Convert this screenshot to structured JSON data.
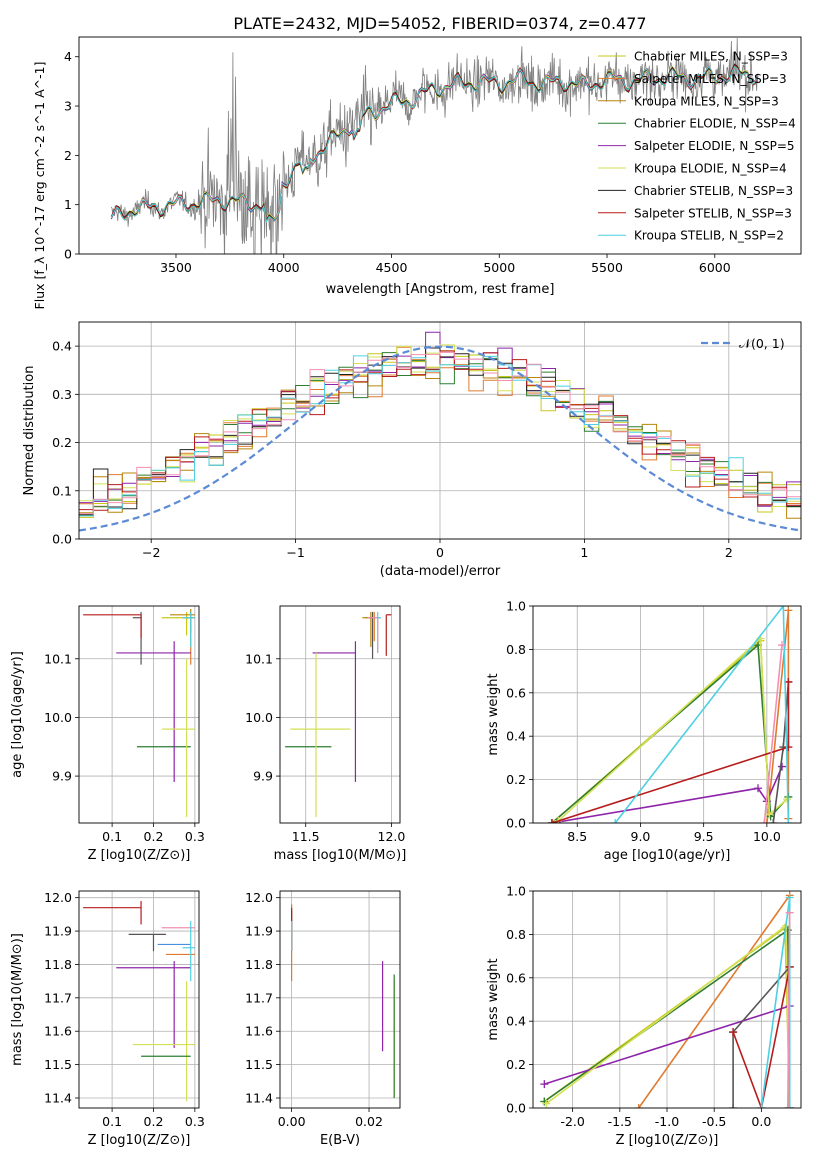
{
  "figure": {
    "suptitle": "PLATE=2432, MJD=54052, FIBERID=0374, z=0.477"
  },
  "series_colors": [
    "#c7c71a",
    "#e07a30",
    "#b8860b",
    "#2e7d32",
    "#8e24aa",
    "#d4e157",
    "#222222",
    "#b71c1c",
    "#4dd0e1"
  ],
  "chart_data": [
    {
      "id": "spectrum",
      "type": "line",
      "title": "PLATE=2432, MJD=54052, FIBERID=0374, z=0.477",
      "xlabel": "wavelength [Angstrom, rest frame]",
      "ylabel": "Flux [f_λ 10^-17 erg cm^-2 s^-1 A^-1]",
      "xlim": [
        3050,
        6400
      ],
      "ylim": [
        0,
        4.4
      ],
      "xticks": [
        3500,
        4000,
        4500,
        5000,
        5500,
        6000
      ],
      "yticks": [
        0,
        1,
        2,
        3,
        4
      ],
      "grid": false,
      "legend": "top-right",
      "data_color": "#808080",
      "models": [
        {
          "name": "Chabrier MILES, N_SSP=3",
          "color": "#c7c71a"
        },
        {
          "name": "Salpeter MILES, N_SSP=3",
          "color": "#e07a30"
        },
        {
          "name": "Kroupa MILES, N_SSP=3",
          "color": "#b8860b"
        },
        {
          "name": "Chabrier ELODIE, N_SSP=4",
          "color": "#2e7d32"
        },
        {
          "name": "Salpeter ELODIE, N_SSP=5",
          "color": "#8e24aa"
        },
        {
          "name": "Kroupa ELODIE, N_SSP=4",
          "color": "#d4e157"
        },
        {
          "name": "Chabrier STELIB, N_SSP=3",
          "color": "#222222"
        },
        {
          "name": "Salpeter STELIB, N_SSP=3",
          "color": "#b71c1c"
        },
        {
          "name": "Kroupa STELIB, N_SSP=2",
          "color": "#4dd0e1"
        }
      ],
      "continuum_knots": [
        [
          3200,
          0.72
        ],
        [
          3300,
          0.92
        ],
        [
          3400,
          0.95
        ],
        [
          3500,
          1.0
        ],
        [
          3600,
          1.05
        ],
        [
          3700,
          1.1
        ],
        [
          3800,
          1.05
        ],
        [
          3900,
          1.0
        ],
        [
          3950,
          1.15
        ],
        [
          4000,
          1.5
        ],
        [
          4100,
          1.9
        ],
        [
          4200,
          2.2
        ],
        [
          4300,
          2.6
        ],
        [
          4400,
          2.85
        ],
        [
          4500,
          3.05
        ],
        [
          4600,
          3.15
        ],
        [
          4700,
          3.35
        ],
        [
          4800,
          3.45
        ],
        [
          4900,
          3.5
        ],
        [
          5000,
          3.45
        ],
        [
          5100,
          3.55
        ],
        [
          5200,
          3.45
        ],
        [
          5300,
          3.5
        ],
        [
          5400,
          3.4
        ],
        [
          5500,
          3.55
        ],
        [
          5600,
          3.5
        ],
        [
          5700,
          3.55
        ],
        [
          5800,
          3.6
        ],
        [
          5900,
          3.55
        ],
        [
          6000,
          3.6
        ],
        [
          6100,
          3.65
        ],
        [
          6200,
          3.65
        ]
      ]
    },
    {
      "id": "residuals",
      "type": "histogram",
      "xlabel": "(data-model)/error",
      "ylabel": "Normed distribution",
      "xlim": [
        -2.5,
        2.5
      ],
      "ylim": [
        0,
        0.45
      ],
      "xticks": [
        -2,
        -1,
        0,
        1,
        2
      ],
      "yticks": [
        0.0,
        0.1,
        0.2,
        0.3,
        0.4
      ],
      "grid": true,
      "legend": "top-right",
      "reference": {
        "name": "𝒩(0, 1)",
        "color": "#5b8bd6"
      },
      "bin_width": 0.1
    },
    {
      "id": "age_vs_Z",
      "type": "errorbar",
      "xlabel": "Z [log10(Z/Z⊙)]",
      "ylabel": "age  [log10(age/yr)]",
      "xlim": [
        0.02,
        0.31
      ],
      "ylim": [
        9.82,
        10.19
      ],
      "xticks": [
        0.1,
        0.2,
        0.3
      ],
      "yticks": [
        9.9,
        10.0,
        10.1
      ],
      "grid": true,
      "points": [
        {
          "x": 0.28,
          "y": 10.17,
          "xerr": [
            0.06,
            0.02
          ],
          "yerr": [
            0.03,
            0.01
          ],
          "c": "#c7c71a"
        },
        {
          "x": 0.29,
          "y": 10.17,
          "xerr": [
            0.02,
            0.01
          ],
          "yerr": [
            0.08,
            0.01
          ],
          "c": "#e07a30"
        },
        {
          "x": 0.29,
          "y": 10.175,
          "xerr": [
            0.05,
            0.01
          ],
          "yerr": [
            0.03,
            0.01
          ],
          "c": "#b8860b"
        },
        {
          "x": 0.22,
          "y": 9.95,
          "xerr": [
            0.06,
            0.07
          ],
          "yerr": [
            0.0,
            0.0
          ],
          "c": "#2e7d32"
        },
        {
          "x": 0.25,
          "y": 10.11,
          "xerr": [
            0.14,
            0.04
          ],
          "yerr": [
            0.22,
            0.02
          ],
          "c": "#8e24aa"
        },
        {
          "x": 0.28,
          "y": 9.98,
          "xerr": [
            0.06,
            0.02
          ],
          "yerr": [
            0.15,
            0.12
          ],
          "c": "#d4e157"
        },
        {
          "x": 0.17,
          "y": 10.17,
          "xerr": [
            0.02,
            0.0
          ],
          "yerr": [
            0.08,
            0.01
          ],
          "c": "#555555"
        },
        {
          "x": 0.17,
          "y": 10.175,
          "xerr": [
            0.14,
            0.0
          ],
          "yerr": [
            0.04,
            0.0
          ],
          "c": "#b71c1c"
        },
        {
          "x": 0.29,
          "y": 10.17,
          "xerr": [
            0.02,
            0.01
          ],
          "yerr": [
            0.05,
            0.01
          ],
          "c": "#4dd0e1"
        }
      ]
    },
    {
      "id": "age_vs_mass",
      "type": "errorbar",
      "xlabel": "mass [log10(M/M⊙)]",
      "ylabel": "",
      "xlim": [
        11.35,
        12.05
      ],
      "ylim": [
        9.82,
        10.19
      ],
      "xticks": [
        11.5,
        12.0
      ],
      "yticks": [
        9.9,
        10.0,
        10.1
      ],
      "grid": true,
      "points": [
        {
          "x": 11.9,
          "y": 10.17,
          "xerr": [
            0.05,
            0.03
          ],
          "yerr": [
            0.04,
            0.01
          ],
          "c": "#e07a30"
        },
        {
          "x": 11.88,
          "y": 10.17,
          "xerr": [
            0.05,
            0.03
          ],
          "yerr": [
            0.05,
            0.01
          ],
          "c": "#b8860b"
        },
        {
          "x": 11.53,
          "y": 9.95,
          "xerr": [
            0.15,
            0.12
          ],
          "yerr": [
            0.0,
            0.0
          ],
          "c": "#2e7d32"
        },
        {
          "x": 11.79,
          "y": 10.11,
          "xerr": [
            0.25,
            0.0
          ],
          "yerr": [
            0.22,
            0.02
          ],
          "c": "#8e24aa"
        },
        {
          "x": 11.56,
          "y": 9.98,
          "xerr": [
            0.15,
            0.2
          ],
          "yerr": [
            0.15,
            0.13
          ],
          "c": "#d4e157"
        },
        {
          "x": 11.89,
          "y": 10.17,
          "xerr": [
            0.02,
            0.02
          ],
          "yerr": [
            0.07,
            0.01
          ],
          "c": "#555555"
        },
        {
          "x": 11.97,
          "y": 10.175,
          "xerr": [
            0.0,
            0.03
          ],
          "yerr": [
            0.07,
            0.0
          ],
          "c": "#b71c1c"
        },
        {
          "x": 11.92,
          "y": 10.17,
          "xerr": [
            0.03,
            0.02
          ],
          "yerr": [
            0.06,
            0.01
          ],
          "c": "#4dd0e1"
        },
        {
          "x": 11.92,
          "y": 10.17,
          "xerr": [
            0.06,
            0.0
          ],
          "yerr": [
            0.06,
            0.0
          ],
          "c": "#f48fb1"
        }
      ]
    },
    {
      "id": "weight_vs_age",
      "type": "line",
      "xlabel": "age  [log10(age/yr)]",
      "ylabel": "mass weight",
      "xlim": [
        8.15,
        10.27
      ],
      "ylim": [
        0,
        1.0
      ],
      "xticks": [
        8.5,
        9.0,
        9.5,
        10.0
      ],
      "yticks": [
        0.0,
        0.2,
        0.4,
        0.6,
        0.8,
        1.0
      ],
      "grid": true,
      "series": [
        {
          "c": "#c7c71a",
          "x": [
            8.3,
            9.95,
            10.02
          ],
          "y": [
            0.0,
            0.84,
            0.04
          ]
        },
        {
          "c": "#e07a30",
          "x": [
            10.0,
            10.17,
            10.17
          ],
          "y": [
            0.0,
            0.98,
            0.02
          ]
        },
        {
          "c": "#2e7d32",
          "x": [
            8.3,
            9.93,
            10.03,
            10.17
          ],
          "y": [
            0.0,
            0.82,
            0.03,
            0.12
          ]
        },
        {
          "c": "#8e24aa",
          "x": [
            8.3,
            9.93,
            10.0,
            10.12
          ],
          "y": [
            0.0,
            0.16,
            0.1,
            0.26
          ]
        },
        {
          "c": "#d4e157",
          "x": [
            8.35,
            9.95,
            10.02,
            10.16
          ],
          "y": [
            0.01,
            0.85,
            0.04,
            0.11
          ]
        },
        {
          "c": "#555555",
          "x": [
            10.05,
            10.13,
            10.17
          ],
          "y": [
            0.0,
            0.35,
            0.65
          ]
        },
        {
          "c": "#b71c1c",
          "x": [
            8.3,
            10.17,
            10.17
          ],
          "y": [
            0.0,
            0.35,
            0.65
          ]
        },
        {
          "c": "#4dd0e1",
          "x": [
            8.8,
            10.13,
            10.17
          ],
          "y": [
            0.0,
            1.0,
            0.0
          ]
        },
        {
          "c": "#f48fb1",
          "x": [
            9.98,
            10.12
          ],
          "y": [
            0.0,
            0.82
          ]
        }
      ]
    },
    {
      "id": "mass_vs_Z",
      "type": "errorbar",
      "xlabel": "Z [log10(Z/Z⊙)]",
      "ylabel": "mass [log10(M/M⊙)]",
      "xlim": [
        0.02,
        0.31
      ],
      "ylim": [
        11.37,
        12.02
      ],
      "xticks": [
        0.1,
        0.2,
        0.3
      ],
      "yticks": [
        11.4,
        11.5,
        11.6,
        11.7,
        11.8,
        11.9,
        12.0
      ],
      "grid": true,
      "points": [
        {
          "x": 0.28,
          "y": 11.91,
          "xerr": [
            0.06,
            0.02
          ],
          "yerr": [
            0.0,
            0.0
          ],
          "c": "#f48fb1"
        },
        {
          "x": 0.29,
          "y": 11.83,
          "xerr": [
            0.06,
            0.01
          ],
          "yerr": [
            0.0,
            0.0
          ],
          "c": "#e07a30"
        },
        {
          "x": 0.27,
          "y": 11.86,
          "xerr": [
            0.06,
            0.02
          ],
          "yerr": [
            0.0,
            0.0
          ],
          "c": "#4a90e2"
        },
        {
          "x": 0.2,
          "y": 11.89,
          "xerr": [
            0.06,
            0.03
          ],
          "yerr": [
            0.05,
            0.0
          ],
          "c": "#555555"
        },
        {
          "x": 0.25,
          "y": 11.79,
          "xerr": [
            0.14,
            0.04
          ],
          "yerr": [
            0.24,
            0.02
          ],
          "c": "#8e24aa"
        },
        {
          "x": 0.28,
          "y": 11.56,
          "xerr": [
            0.13,
            0.02
          ],
          "yerr": [
            0.17,
            0.19
          ],
          "c": "#d4e157"
        },
        {
          "x": 0.22,
          "y": 11.525,
          "xerr": [
            0.05,
            0.07
          ],
          "yerr": [
            0.0,
            0.0
          ],
          "c": "#2e7d32"
        },
        {
          "x": 0.17,
          "y": 11.97,
          "xerr": [
            0.14,
            0.0
          ],
          "yerr": [
            0.05,
            0.02
          ],
          "c": "#b71c1c"
        },
        {
          "x": 0.29,
          "y": 11.85,
          "xerr": [
            0.02,
            0.01
          ],
          "yerr": [
            0.1,
            0.08
          ],
          "c": "#4dd0e1"
        }
      ]
    },
    {
      "id": "mass_vs_ebv",
      "type": "errorbar",
      "xlabel": "E(B-V)",
      "ylabel": "",
      "xlim": [
        -0.003,
        0.028
      ],
      "ylim": [
        11.37,
        12.02
      ],
      "xticks": [
        0.0,
        0.02
      ],
      "yticks": [
        11.4,
        11.5,
        11.6,
        11.7,
        11.8,
        11.9,
        12.0
      ],
      "grid": true,
      "points": [
        {
          "x": 0.0,
          "y": 11.9,
          "xerr": [
            0,
            0
          ],
          "yerr": [
            0.15,
            0.08
          ],
          "c": "#e07a30"
        },
        {
          "x": 0.0,
          "y": 11.9,
          "xerr": [
            0,
            0
          ],
          "yerr": [
            0.06,
            0.06
          ],
          "c": "#555555"
        },
        {
          "x": 0.0,
          "y": 11.92,
          "xerr": [
            0,
            0
          ],
          "yerr": [
            0.08,
            0.05
          ],
          "c": "#b71c1c"
        },
        {
          "x": 0.0,
          "y": 11.88,
          "xerr": [
            0,
            0
          ],
          "yerr": [
            0.04,
            0.05
          ],
          "c": "#4dd0e1"
        },
        {
          "x": 0.0235,
          "y": 11.63,
          "xerr": [
            0,
            0
          ],
          "yerr": [
            0.09,
            0.18
          ],
          "c": "#8e24aa"
        },
        {
          "x": 0.0265,
          "y": 11.55,
          "xerr": [
            0,
            0
          ],
          "yerr": [
            0.15,
            0.2
          ],
          "c": "#d4e157"
        },
        {
          "x": 0.0265,
          "y": 11.6,
          "xerr": [
            0,
            0
          ],
          "yerr": [
            0.2,
            0.17
          ],
          "c": "#2e7d32"
        }
      ]
    },
    {
      "id": "weight_vs_Z",
      "type": "line",
      "xlabel": "Z [log10(Z/Z⊙)]",
      "ylabel": "mass weight",
      "xlim": [
        -2.42,
        0.42
      ],
      "ylim": [
        0,
        1.0
      ],
      "xticks": [
        -2.0,
        -1.5,
        -1.0,
        -0.5,
        0.0
      ],
      "yticks": [
        0.0,
        0.2,
        0.4,
        0.6,
        0.8,
        1.0
      ],
      "grid": true,
      "series": [
        {
          "c": "#c7c71a",
          "x": [
            -2.3,
            0.25,
            0.3
          ],
          "y": [
            0.03,
            0.83,
            0.0
          ]
        },
        {
          "c": "#e07a30",
          "x": [
            -1.3,
            0.3,
            0.3
          ],
          "y": [
            0.0,
            0.98,
            0.0
          ]
        },
        {
          "c": "#2e7d32",
          "x": [
            -2.3,
            0.28,
            0.3
          ],
          "y": [
            0.03,
            0.82,
            0.0
          ]
        },
        {
          "c": "#8e24aa",
          "x": [
            -2.3,
            0.3
          ],
          "y": [
            0.11,
            0.47
          ]
        },
        {
          "c": "#d4e157",
          "x": [
            -2.28,
            0.26,
            0.3
          ],
          "y": [
            0.02,
            0.84,
            0.0
          ]
        },
        {
          "c": "#555555",
          "x": [
            -0.3,
            -0.3,
            0.3,
            0.3
          ],
          "y": [
            0.0,
            0.35,
            0.65,
            0.0
          ]
        },
        {
          "c": "#b71c1c",
          "x": [
            -0.3,
            0.0,
            0.3
          ],
          "y": [
            0.35,
            0.0,
            0.65
          ]
        },
        {
          "c": "#4dd0e1",
          "x": [
            0.0,
            0.3,
            0.3
          ],
          "y": [
            0.0,
            0.97,
            0.0
          ]
        },
        {
          "c": "#f48fb1",
          "x": [
            0.28,
            0.3
          ],
          "y": [
            0.0,
            0.9
          ]
        }
      ]
    }
  ]
}
